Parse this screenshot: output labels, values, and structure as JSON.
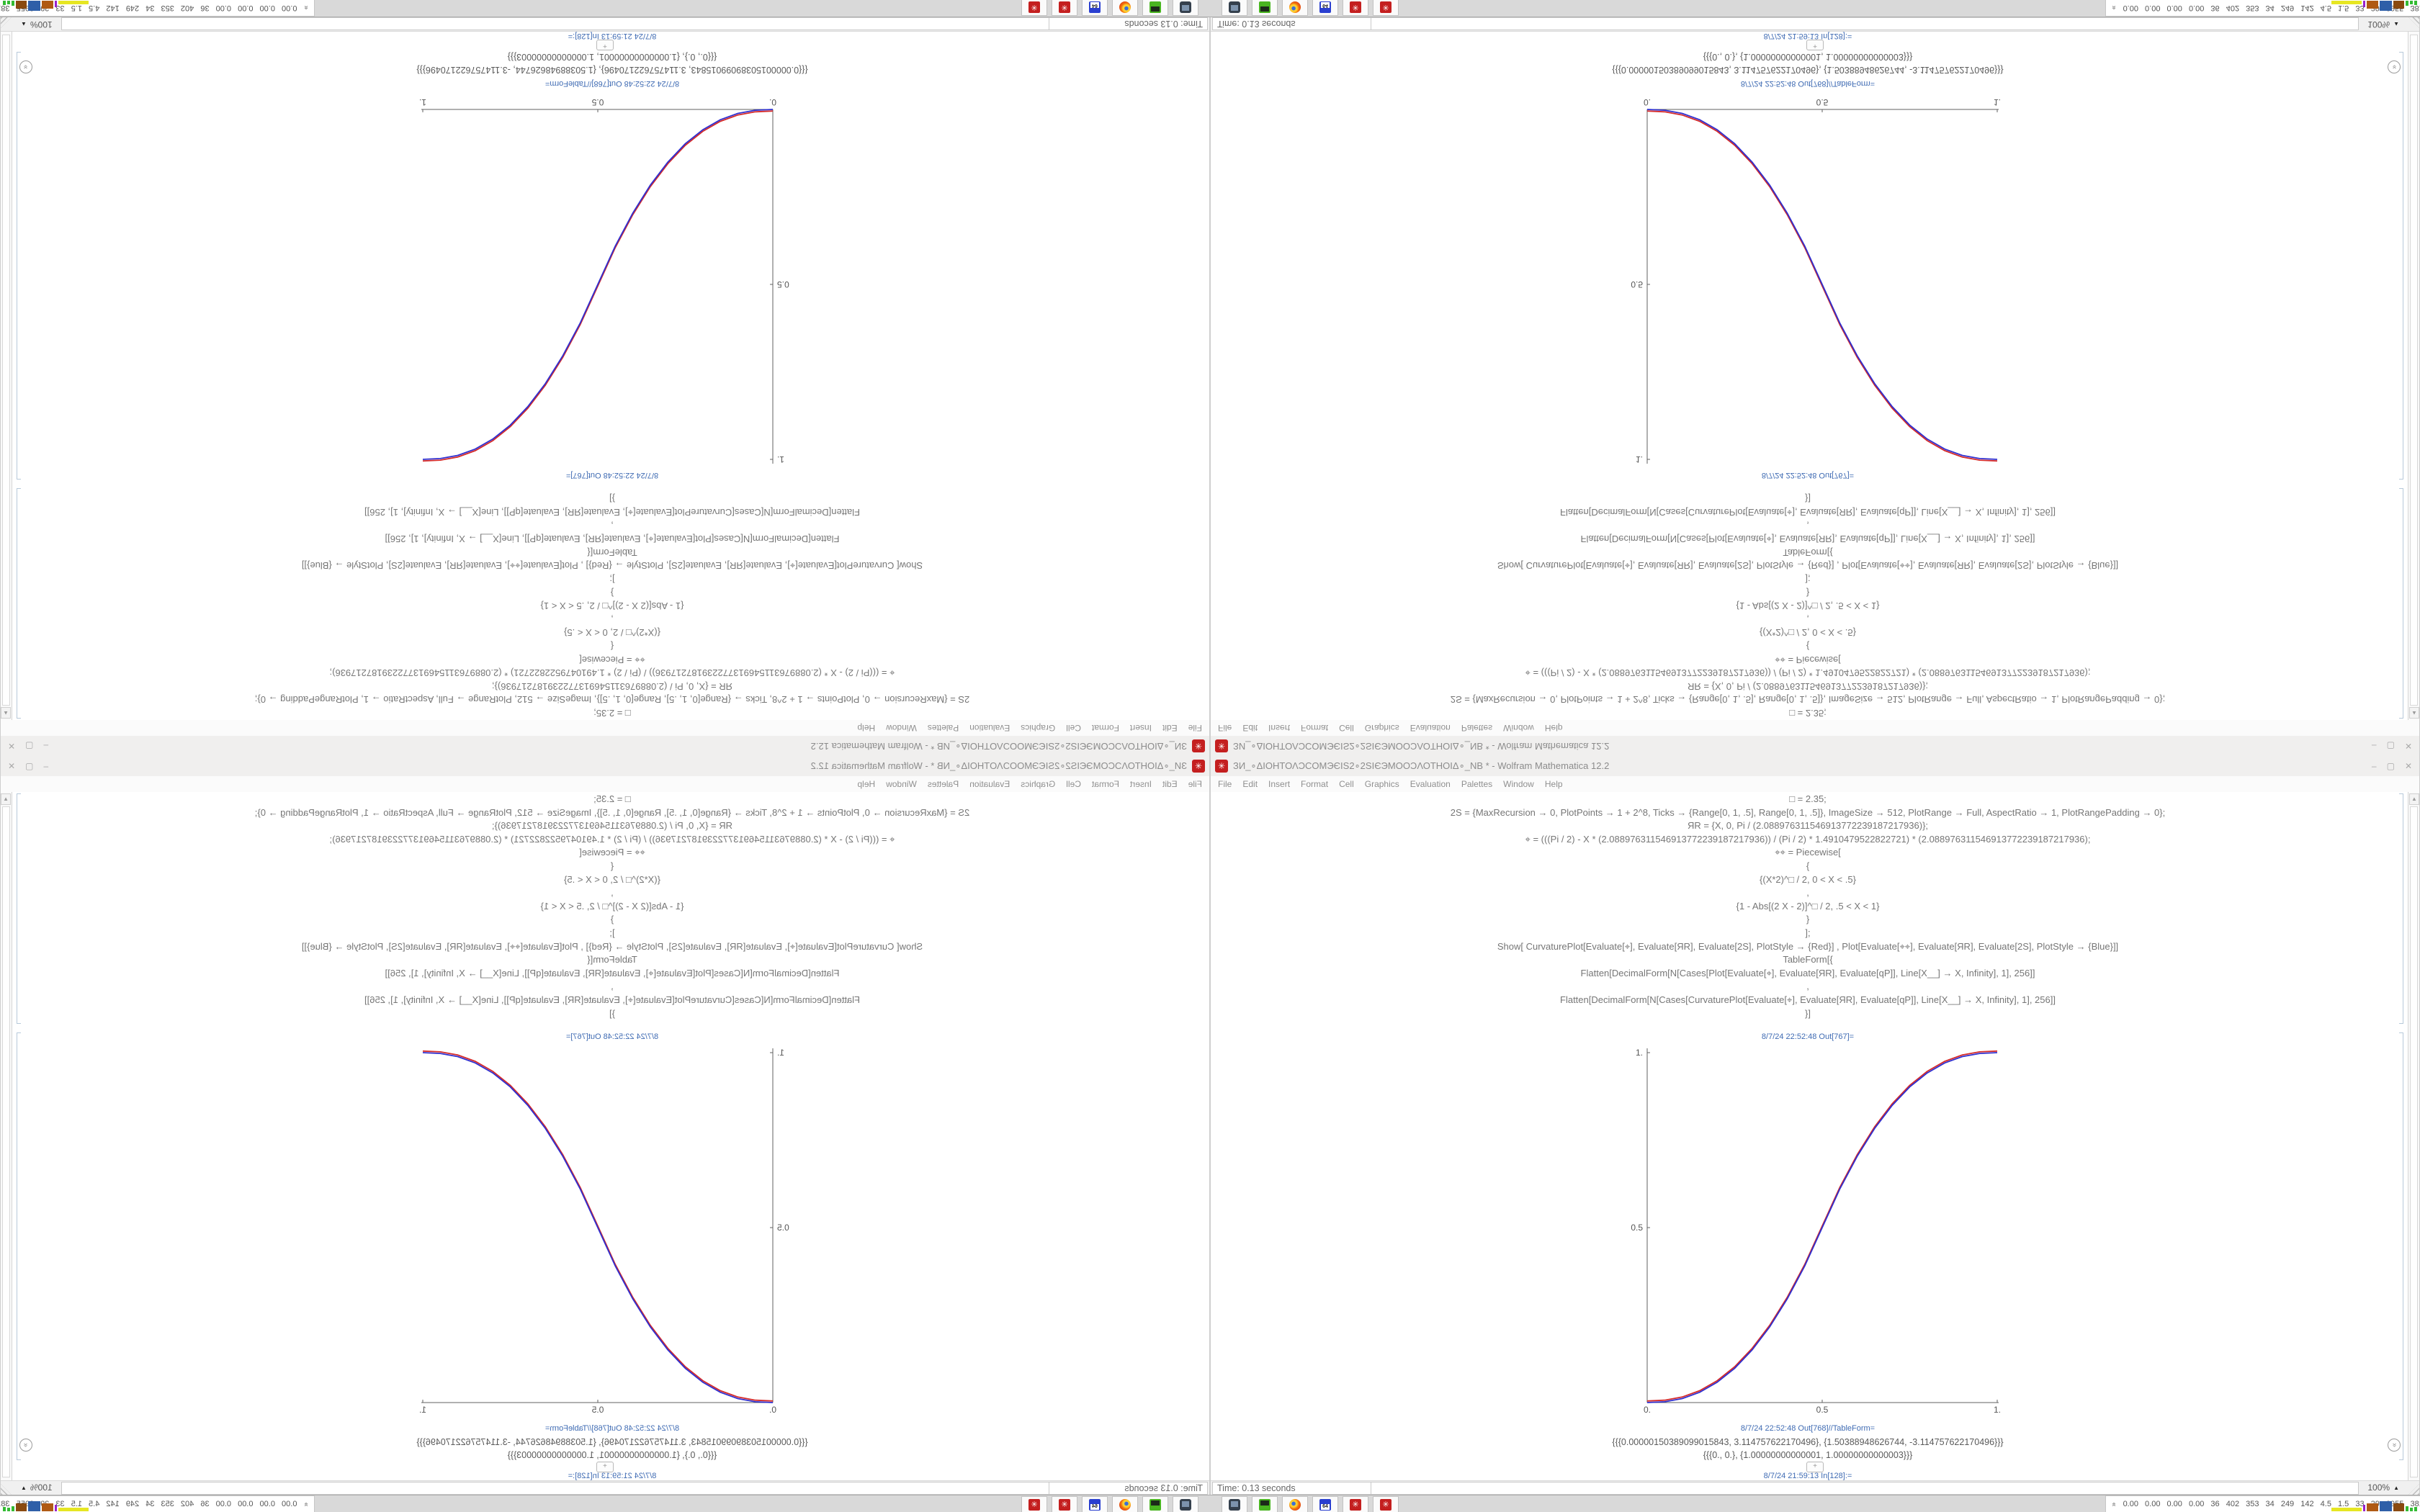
{
  "window": {
    "title": "ЗИ_∘ΔΙΟΗΤΟΛϽCOMЭЄIS2∘2SIЄЭMOOϽΛΟΤΗΟΙΔ∘_NB * - Wolfram Mathematica 12.2",
    "menu": [
      "File",
      "Edit",
      "Insert",
      "Format",
      "Cell",
      "Graphics",
      "Evaluation",
      "Palettes",
      "Window",
      "Help"
    ],
    "controls": {
      "minimize": "–",
      "maximize": "▢",
      "close": "✕"
    }
  },
  "icons": {
    "spikey": "✳",
    "scroll_up": "▲",
    "expander": "«",
    "elide_chevrons": "»"
  },
  "notebook": {
    "code_lines": [
      "□ = 2.35;",
      "2S = {MaxRecursion → 0, PlotPoints → 1 + 2^8, Ticks → {Range[0, 1, .5], Range[0, 1, .5]}, ImageSize → 512, PlotRange → Full, AspectRatio → 1, PlotRangePadding → 0};",
      "ЯR = {X, 0, Pi / (2.088976311546913772239187217936)};",
      "⌖ = (((Pi / 2) - X * (2.088976311546913772239187217936)) / (Pi / 2) * 1.4910479522822721) * (2.088976311546913772239187217936);",
      "⌖⌖ = Piecewise[",
      "{",
      "{(X*2)^□ / 2, 0 < X < .5}",
      ",",
      "{1 - Abs[(2 X - 2)]^□ / 2, .5 < X < 1}",
      "}",
      "];",
      "Show[  CurvaturePlot[Evaluate[⌖], Evaluate[ЯR], Evaluate[2S], PlotStyle → {Red}]  ,  Plot[Evaluate[⌖⌖], Evaluate[ЯR], Evaluate[2S], PlotStyle → {Blue}]]",
      "TableForm[{",
      "Flatten[DecimalForm[N[Cases[Plot[Evaluate[⌖], Evaluate[ЯR], Evaluate[qP]], Line[X__] → X, Infinity], 1], 256]]",
      ",",
      "Flatten[DecimalForm[N[Cases[CurvaturePlot[Evaluate[⌖], Evaluate[ЯR], Evaluate[qP]], Line[X__] → X, Infinity], 1], 256]]",
      "}]"
    ],
    "out1_label": "8/7/24 22:52:48 Out[767]=",
    "out2_label": "8/7/24 22:52:48 Out[768]//TableForm=",
    "table_lines": [
      "{{{0.00000150389099015843, 3.114757622170496}, {1.50388948626744, -3.114757622170496}}}",
      "{{{0., 0.}, {1.00000000000001, 1.00000000000003}}}"
    ],
    "insert_plus": "+",
    "in_label": "8/7/24 21:59:13 In[128]:=",
    "status_time": "Time: 0.13 seconds",
    "zoom": "100%"
  },
  "chart_data": {
    "type": "line",
    "title": "",
    "xlabel": "",
    "ylabel": "",
    "xlim": [
      0,
      1
    ],
    "ylim": [
      0,
      1
    ],
    "xtick_labels": [
      "0.",
      "0.5",
      "1."
    ],
    "ytick_labels": [
      "0.5",
      "1."
    ],
    "x": [
      0,
      0.05,
      0.1,
      0.15,
      0.2,
      0.25,
      0.3,
      0.35,
      0.4,
      0.45,
      0.5,
      0.55,
      0.6,
      0.65,
      0.7,
      0.75,
      0.8,
      0.85,
      0.9,
      0.95,
      1
    ],
    "y": [
      0,
      0.0022,
      0.0114,
      0.0295,
      0.0581,
      0.098,
      0.1506,
      0.2162,
      0.296,
      0.3902,
      0.5,
      0.6098,
      0.704,
      0.7838,
      0.8494,
      0.902,
      0.9419,
      0.9705,
      0.9886,
      0.9978,
      1
    ],
    "series": [
      {
        "name": "CurvaturePlot",
        "color": "#d42a2a"
      },
      {
        "name": "Plot",
        "color": "#2f2fd0"
      }
    ],
    "legend": "none",
    "grid": false,
    "note": "Red CurvaturePlot and blue Plot of piecewise smoothstep (exponent 2.35) overlap, appearing purple"
  },
  "taskbar": {
    "icons": [
      "screenshot-tool",
      "storage-device",
      "firefox",
      "floppy-64",
      "mathematica",
      "mathematica"
    ],
    "floppy_label": "64"
  },
  "monitor": {
    "values": "0.00 0.00 0.00 0.00 36 402 353 34 249 142 4.5 1.5 33 29 2955 3811",
    "bars": [
      {
        "c": "#e6e622",
        "w": 42,
        "h": 5
      },
      {
        "c": "#9922cc",
        "w": 3,
        "h": 9
      },
      {
        "c": "#b05a14",
        "w": 16,
        "h": 11
      },
      {
        "c": "#2f5fa8",
        "w": 17,
        "h": 14
      },
      {
        "c": "#8a4a10",
        "w": 15,
        "h": 11
      },
      {
        "c": "#33bb33",
        "w": 4,
        "h": 7
      },
      {
        "c": "#33bb33",
        "w": 4,
        "h": 5
      },
      {
        "c": "#33bb33",
        "w": 4,
        "h": 6
      }
    ]
  }
}
